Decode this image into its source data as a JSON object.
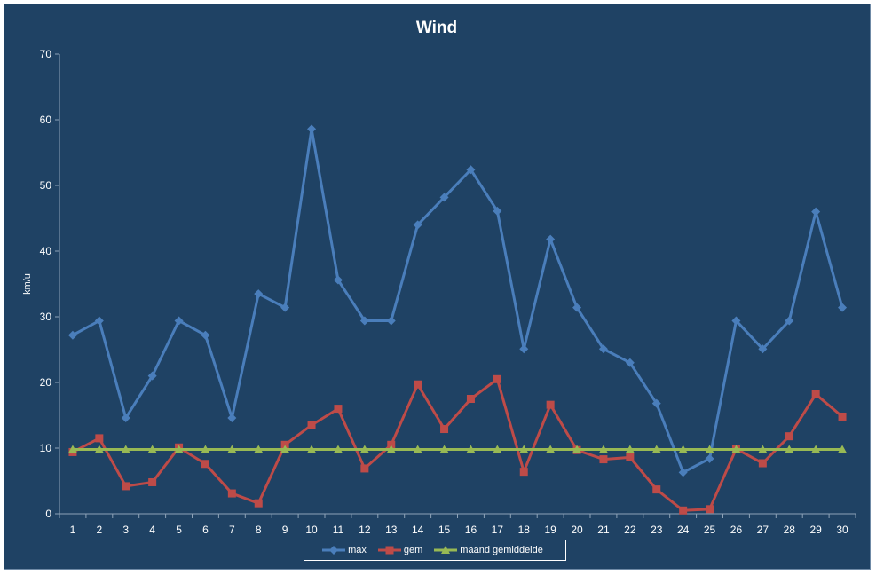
{
  "chart_data": {
    "type": "line",
    "title": "Wind",
    "ylabel": "km/u",
    "xlabel": "",
    "ylim": [
      0,
      70
    ],
    "yticks": [
      "0",
      "10",
      "20",
      "30",
      "40",
      "50",
      "60",
      "70"
    ],
    "categories": [
      "1",
      "2",
      "3",
      "4",
      "5",
      "6",
      "7",
      "8",
      "9",
      "10",
      "11",
      "12",
      "13",
      "14",
      "15",
      "16",
      "17",
      "18",
      "19",
      "20",
      "21",
      "22",
      "23",
      "24",
      "25",
      "26",
      "27",
      "28",
      "29",
      "30"
    ],
    "grid": false,
    "legend_position": "bottom",
    "series": [
      {
        "name": "max",
        "color": "#4a7ebb",
        "marker": "diamond",
        "values": [
          27.2,
          29.4,
          14.6,
          21.0,
          29.4,
          27.2,
          14.6,
          33.5,
          31.4,
          58.6,
          35.6,
          29.4,
          29.4,
          44.0,
          48.2,
          52.4,
          46.1,
          25.1,
          41.8,
          31.4,
          25.1,
          23.0,
          16.8,
          6.3,
          8.4,
          29.4,
          25.1,
          29.4,
          46.0,
          31.4
        ]
      },
      {
        "name": "gem",
        "color": "#be4b48",
        "marker": "square",
        "values": [
          9.4,
          11.5,
          4.2,
          4.8,
          10.1,
          7.6,
          3.1,
          1.6,
          10.5,
          13.5,
          16.0,
          6.9,
          10.5,
          19.7,
          12.9,
          17.5,
          20.5,
          6.4,
          16.6,
          9.7,
          8.3,
          8.6,
          3.7,
          0.5,
          0.7,
          9.9,
          7.7,
          11.8,
          18.2,
          14.8
        ]
      },
      {
        "name": "maand gemiddelde",
        "color": "#98b954",
        "marker": "triangle",
        "values": [
          9.8,
          9.8,
          9.8,
          9.8,
          9.8,
          9.8,
          9.8,
          9.8,
          9.8,
          9.8,
          9.8,
          9.8,
          9.8,
          9.8,
          9.8,
          9.8,
          9.8,
          9.8,
          9.8,
          9.8,
          9.8,
          9.8,
          9.8,
          9.8,
          9.8,
          9.8,
          9.8,
          9.8,
          9.8,
          9.8
        ]
      }
    ]
  }
}
